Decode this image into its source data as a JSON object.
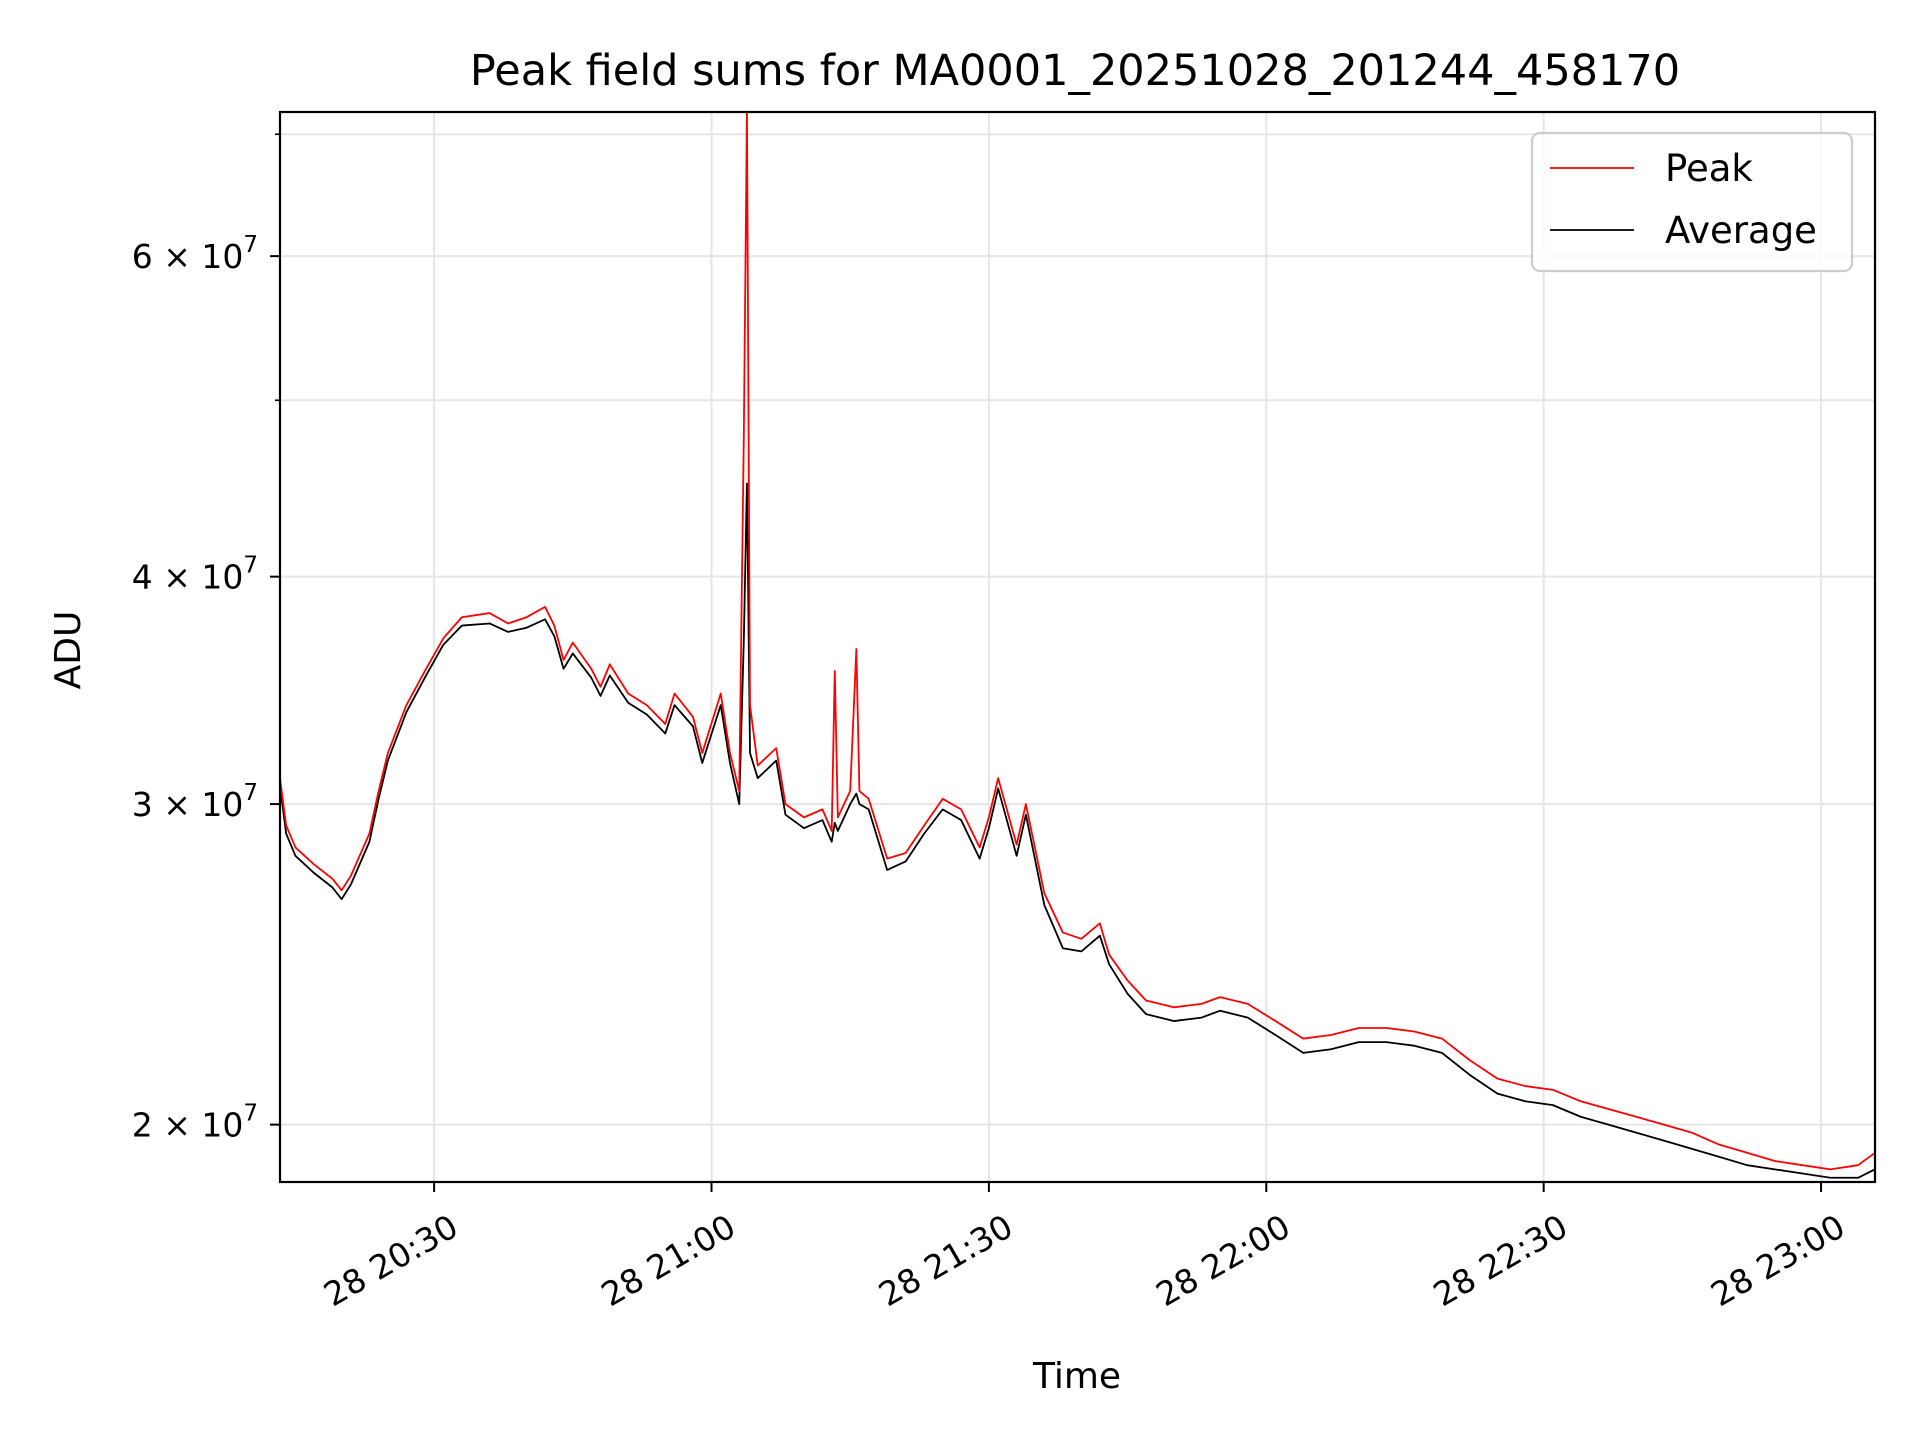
{
  "chart_data": {
    "type": "line",
    "title": "Peak field sums for MA0001_20251028_201244_458170",
    "xlabel": "Time",
    "ylabel": "ADU",
    "x_axis": {
      "kind": "datetime",
      "range": [
        "2025-10-28 20:13:20",
        "2025-10-28 23:05:50"
      ],
      "ticks": [
        {
          "value": "2025-10-28 20:30:00",
          "label": "28 20:30"
        },
        {
          "value": "2025-10-28 21:00:00",
          "label": "28 21:00"
        },
        {
          "value": "2025-10-28 21:30:00",
          "label": "28 21:30"
        },
        {
          "value": "2025-10-28 22:00:00",
          "label": "28 22:00"
        },
        {
          "value": "2025-10-28 22:30:00",
          "label": "28 22:30"
        },
        {
          "value": "2025-10-28 23:00:00",
          "label": "28 23:00"
        }
      ]
    },
    "y_axis": {
      "scale": "log",
      "range": [
        18600000,
        72000000
      ],
      "major_ticks": [
        {
          "value": 20000000,
          "label_mantissa": "2",
          "label_base": "10",
          "label_exp": "7"
        },
        {
          "value": 30000000,
          "label_mantissa": "3",
          "label_base": "10",
          "label_exp": "7"
        },
        {
          "value": 40000000,
          "label_mantissa": "4",
          "label_base": "10",
          "label_exp": "7"
        },
        {
          "value": 60000000,
          "label_mantissa": "6",
          "label_base": "10",
          "label_exp": "7"
        }
      ],
      "minor_ticks": [
        50000000,
        70000000
      ]
    },
    "grid": true,
    "legend_position": "top-right",
    "series": [
      {
        "name": "Peak",
        "color": "#ff0000",
        "points": [
          [
            "2025-10-28 20:13:20",
            31000000
          ],
          [
            "2025-10-28 20:14:00",
            29200000
          ],
          [
            "2025-10-28 20:15:00",
            28400000
          ],
          [
            "2025-10-28 20:17:00",
            27800000
          ],
          [
            "2025-10-28 20:19:00",
            27300000
          ],
          [
            "2025-10-28 20:20:00",
            26900000
          ],
          [
            "2025-10-28 20:21:00",
            27400000
          ],
          [
            "2025-10-28 20:23:00",
            28900000
          ],
          [
            "2025-10-28 20:24:00",
            30500000
          ],
          [
            "2025-10-28 20:25:00",
            32000000
          ],
          [
            "2025-10-28 20:27:00",
            34000000
          ],
          [
            "2025-10-28 20:29:00",
            35500000
          ],
          [
            "2025-10-28 20:31:00",
            37000000
          ],
          [
            "2025-10-28 20:33:00",
            38000000
          ],
          [
            "2025-10-28 20:36:00",
            38200000
          ],
          [
            "2025-10-28 20:38:00",
            37700000
          ],
          [
            "2025-10-28 20:40:00",
            38000000
          ],
          [
            "2025-10-28 20:42:00",
            38500000
          ],
          [
            "2025-10-28 20:43:00",
            37600000
          ],
          [
            "2025-10-28 20:44:00",
            36000000
          ],
          [
            "2025-10-28 20:45:00",
            36800000
          ],
          [
            "2025-10-28 20:47:00",
            35600000
          ],
          [
            "2025-10-28 20:48:00",
            34800000
          ],
          [
            "2025-10-28 20:49:00",
            35800000
          ],
          [
            "2025-10-28 20:51:00",
            34500000
          ],
          [
            "2025-10-28 20:53:00",
            34000000
          ],
          [
            "2025-10-28 20:55:00",
            33200000
          ],
          [
            "2025-10-28 20:56:00",
            34500000
          ],
          [
            "2025-10-28 20:58:00",
            33500000
          ],
          [
            "2025-10-28 20:59:00",
            32000000
          ],
          [
            "2025-10-28 21:01:00",
            34500000
          ],
          [
            "2025-10-28 21:02:00",
            32000000
          ],
          [
            "2025-10-28 21:03:00",
            30500000
          ],
          [
            "2025-10-28 21:03:30",
            48000000
          ],
          [
            "2025-10-28 21:03:50",
            72000000
          ],
          [
            "2025-10-28 21:04:10",
            34000000
          ],
          [
            "2025-10-28 21:05:00",
            31500000
          ],
          [
            "2025-10-28 21:07:00",
            32200000
          ],
          [
            "2025-10-28 21:08:00",
            30000000
          ],
          [
            "2025-10-28 21:10:00",
            29500000
          ],
          [
            "2025-10-28 21:12:00",
            29800000
          ],
          [
            "2025-10-28 21:13:00",
            29000000
          ],
          [
            "2025-10-28 21:13:20",
            35500000
          ],
          [
            "2025-10-28 21:13:40",
            29500000
          ],
          [
            "2025-10-28 21:15:00",
            30500000
          ],
          [
            "2025-10-28 21:15:40",
            36500000
          ],
          [
            "2025-10-28 21:16:00",
            30500000
          ],
          [
            "2025-10-28 21:17:00",
            30200000
          ],
          [
            "2025-10-28 21:19:00",
            28000000
          ],
          [
            "2025-10-28 21:21:00",
            28200000
          ],
          [
            "2025-10-28 21:23:00",
            29200000
          ],
          [
            "2025-10-28 21:25:00",
            30200000
          ],
          [
            "2025-10-28 21:27:00",
            29800000
          ],
          [
            "2025-10-28 21:29:00",
            28400000
          ],
          [
            "2025-10-28 21:30:00",
            29500000
          ],
          [
            "2025-10-28 21:31:00",
            31000000
          ],
          [
            "2025-10-28 21:33:00",
            28500000
          ],
          [
            "2025-10-28 21:34:00",
            30000000
          ],
          [
            "2025-10-28 21:36:00",
            26800000
          ],
          [
            "2025-10-28 21:38:00",
            25500000
          ],
          [
            "2025-10-28 21:40:00",
            25300000
          ],
          [
            "2025-10-28 21:42:00",
            25800000
          ],
          [
            "2025-10-28 21:43:00",
            24800000
          ],
          [
            "2025-10-28 21:45:00",
            24000000
          ],
          [
            "2025-10-28 21:47:00",
            23400000
          ],
          [
            "2025-10-28 21:50:00",
            23200000
          ],
          [
            "2025-10-28 21:53:00",
            23300000
          ],
          [
            "2025-10-28 21:55:00",
            23500000
          ],
          [
            "2025-10-28 21:58:00",
            23300000
          ],
          [
            "2025-10-28 22:01:00",
            22800000
          ],
          [
            "2025-10-28 22:04:00",
            22300000
          ],
          [
            "2025-10-28 22:07:00",
            22400000
          ],
          [
            "2025-10-28 22:10:00",
            22600000
          ],
          [
            "2025-10-28 22:13:00",
            22600000
          ],
          [
            "2025-10-28 22:16:00",
            22500000
          ],
          [
            "2025-10-28 22:19:00",
            22300000
          ],
          [
            "2025-10-28 22:22:00",
            21700000
          ],
          [
            "2025-10-28 22:25:00",
            21200000
          ],
          [
            "2025-10-28 22:28:00",
            21000000
          ],
          [
            "2025-10-28 22:31:00",
            20900000
          ],
          [
            "2025-10-28 22:34:00",
            20600000
          ],
          [
            "2025-10-28 22:37:00",
            20400000
          ],
          [
            "2025-10-28 22:40:00",
            20200000
          ],
          [
            "2025-10-28 22:43:00",
            20000000
          ],
          [
            "2025-10-28 22:46:00",
            19800000
          ],
          [
            "2025-10-28 22:49:00",
            19500000
          ],
          [
            "2025-10-28 22:52:00",
            19300000
          ],
          [
            "2025-10-28 22:55:00",
            19100000
          ],
          [
            "2025-10-28 22:58:00",
            19000000
          ],
          [
            "2025-10-28 23:01:00",
            18900000
          ],
          [
            "2025-10-28 23:04:00",
            19000000
          ],
          [
            "2025-10-28 23:05:50",
            19300000
          ]
        ]
      },
      {
        "name": "Average",
        "color": "#000000",
        "points": [
          [
            "2025-10-28 20:13:20",
            30700000
          ],
          [
            "2025-10-28 20:14:00",
            28900000
          ],
          [
            "2025-10-28 20:15:00",
            28100000
          ],
          [
            "2025-10-28 20:17:00",
            27500000
          ],
          [
            "2025-10-28 20:19:00",
            27000000
          ],
          [
            "2025-10-28 20:20:00",
            26600000
          ],
          [
            "2025-10-28 20:21:00",
            27100000
          ],
          [
            "2025-10-28 20:23:00",
            28600000
          ],
          [
            "2025-10-28 20:24:00",
            30200000
          ],
          [
            "2025-10-28 20:25:00",
            31700000
          ],
          [
            "2025-10-28 20:27:00",
            33700000
          ],
          [
            "2025-10-28 20:29:00",
            35200000
          ],
          [
            "2025-10-28 20:31:00",
            36700000
          ],
          [
            "2025-10-28 20:33:00",
            37600000
          ],
          [
            "2025-10-28 20:36:00",
            37700000
          ],
          [
            "2025-10-28 20:38:00",
            37300000
          ],
          [
            "2025-10-28 20:40:00",
            37500000
          ],
          [
            "2025-10-28 20:42:00",
            37900000
          ],
          [
            "2025-10-28 20:43:00",
            37100000
          ],
          [
            "2025-10-28 20:44:00",
            35600000
          ],
          [
            "2025-10-28 20:45:00",
            36300000
          ],
          [
            "2025-10-28 20:47:00",
            35200000
          ],
          [
            "2025-10-28 20:48:00",
            34400000
          ],
          [
            "2025-10-28 20:49:00",
            35300000
          ],
          [
            "2025-10-28 20:51:00",
            34100000
          ],
          [
            "2025-10-28 20:53:00",
            33600000
          ],
          [
            "2025-10-28 20:55:00",
            32800000
          ],
          [
            "2025-10-28 20:56:00",
            34000000
          ],
          [
            "2025-10-28 20:58:00",
            33100000
          ],
          [
            "2025-10-28 20:59:00",
            31600000
          ],
          [
            "2025-10-28 21:01:00",
            34000000
          ],
          [
            "2025-10-28 21:02:00",
            31600000
          ],
          [
            "2025-10-28 21:03:00",
            30000000
          ],
          [
            "2025-10-28 21:03:30",
            37000000
          ],
          [
            "2025-10-28 21:03:50",
            45000000
          ],
          [
            "2025-10-28 21:04:10",
            32000000
          ],
          [
            "2025-10-28 21:05:00",
            31000000
          ],
          [
            "2025-10-28 21:07:00",
            31700000
          ],
          [
            "2025-10-28 21:08:00",
            29600000
          ],
          [
            "2025-10-28 21:10:00",
            29100000
          ],
          [
            "2025-10-28 21:12:00",
            29400000
          ],
          [
            "2025-10-28 21:13:00",
            28600000
          ],
          [
            "2025-10-28 21:13:20",
            29300000
          ],
          [
            "2025-10-28 21:13:40",
            29000000
          ],
          [
            "2025-10-28 21:15:00",
            30000000
          ],
          [
            "2025-10-28 21:15:40",
            30400000
          ],
          [
            "2025-10-28 21:16:00",
            30000000
          ],
          [
            "2025-10-28 21:17:00",
            29800000
          ],
          [
            "2025-10-28 21:19:00",
            27600000
          ],
          [
            "2025-10-28 21:21:00",
            27900000
          ],
          [
            "2025-10-28 21:23:00",
            28900000
          ],
          [
            "2025-10-28 21:25:00",
            29800000
          ],
          [
            "2025-10-28 21:27:00",
            29400000
          ],
          [
            "2025-10-28 21:29:00",
            28000000
          ],
          [
            "2025-10-28 21:30:00",
            29100000
          ],
          [
            "2025-10-28 21:31:00",
            30600000
          ],
          [
            "2025-10-28 21:33:00",
            28100000
          ],
          [
            "2025-10-28 21:34:00",
            29600000
          ],
          [
            "2025-10-28 21:36:00",
            26400000
          ],
          [
            "2025-10-28 21:38:00",
            25000000
          ],
          [
            "2025-10-28 21:40:00",
            24900000
          ],
          [
            "2025-10-28 21:42:00",
            25400000
          ],
          [
            "2025-10-28 21:43:00",
            24500000
          ],
          [
            "2025-10-28 21:45:00",
            23600000
          ],
          [
            "2025-10-28 21:47:00",
            23000000
          ],
          [
            "2025-10-28 21:50:00",
            22800000
          ],
          [
            "2025-10-28 21:53:00",
            22900000
          ],
          [
            "2025-10-28 21:55:00",
            23100000
          ],
          [
            "2025-10-28 21:58:00",
            22900000
          ],
          [
            "2025-10-28 22:01:00",
            22400000
          ],
          [
            "2025-10-28 22:04:00",
            21900000
          ],
          [
            "2025-10-28 22:07:00",
            22000000
          ],
          [
            "2025-10-28 22:10:00",
            22200000
          ],
          [
            "2025-10-28 22:13:00",
            22200000
          ],
          [
            "2025-10-28 22:16:00",
            22100000
          ],
          [
            "2025-10-28 22:19:00",
            21900000
          ],
          [
            "2025-10-28 22:22:00",
            21300000
          ],
          [
            "2025-10-28 22:25:00",
            20800000
          ],
          [
            "2025-10-28 22:28:00",
            20600000
          ],
          [
            "2025-10-28 22:31:00",
            20500000
          ],
          [
            "2025-10-28 22:34:00",
            20200000
          ],
          [
            "2025-10-28 22:37:00",
            20000000
          ],
          [
            "2025-10-28 22:40:00",
            19800000
          ],
          [
            "2025-10-28 22:43:00",
            19600000
          ],
          [
            "2025-10-28 22:46:00",
            19400000
          ],
          [
            "2025-10-28 22:49:00",
            19200000
          ],
          [
            "2025-10-28 22:52:00",
            19000000
          ],
          [
            "2025-10-28 22:55:00",
            18900000
          ],
          [
            "2025-10-28 22:58:00",
            18800000
          ],
          [
            "2025-10-28 23:01:00",
            18700000
          ],
          [
            "2025-10-28 23:04:00",
            18700000
          ],
          [
            "2025-10-28 23:05:50",
            18900000
          ]
        ]
      }
    ]
  }
}
